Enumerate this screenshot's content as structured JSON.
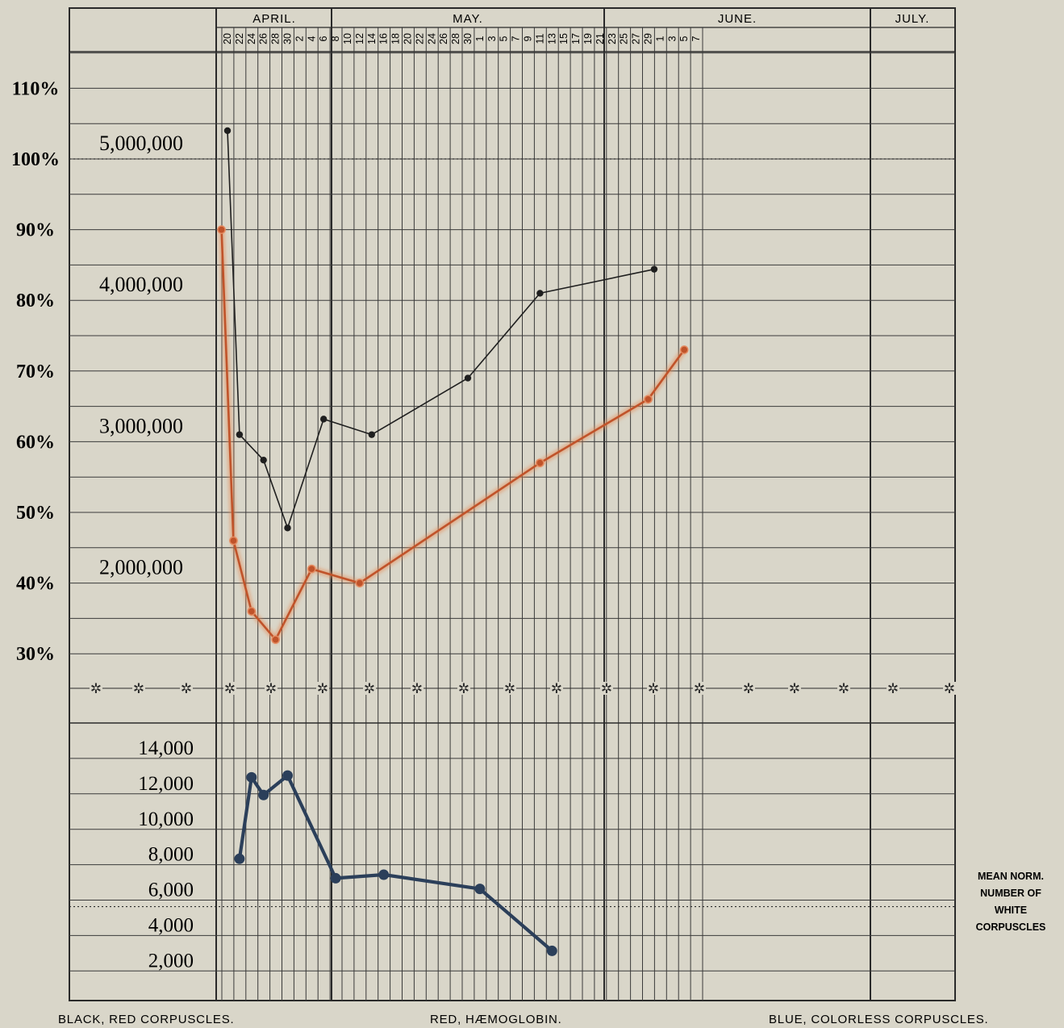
{
  "chart_data": {
    "type": "line",
    "months": [
      {
        "label": "APRIL."
      },
      {
        "label": "MAY."
      },
      {
        "label": "JUNE."
      },
      {
        "label": "JULY."
      }
    ],
    "day_labels": [
      "20",
      "22",
      "24",
      "26",
      "28",
      "30",
      "2",
      "4",
      "6",
      "8",
      "10",
      "12",
      "14",
      "16",
      "18",
      "20",
      "22",
      "24",
      "26",
      "28",
      "30",
      "1",
      "3",
      "5",
      "7",
      "9",
      "11",
      "13",
      "15",
      "17",
      "19",
      "21",
      "23",
      "25",
      "27",
      "29",
      "1",
      "3",
      "5",
      "7"
    ],
    "percent_ticks": [
      "110%",
      "100%",
      "90%",
      "80%",
      "70%",
      "60%",
      "50%",
      "40%",
      "30%"
    ],
    "red_count_ticks": [
      "5,000,000",
      "4,000,000",
      "3,000,000",
      "2,000,000"
    ],
    "white_count_ticks": [
      "14,000",
      "12,000",
      "10,000",
      "8,000",
      "6,000",
      "4,000",
      "2,000"
    ],
    "mean_norm_label": "MEAN NORM. NUMBER OF WHITE CORPUSCLES",
    "legend_notes": [
      "BLACK, RED CORPUSCLES.",
      "RED, HÆMOGLOBIN.",
      "BLUE, COLORLESS CORPUSCLES."
    ],
    "series": [
      {
        "legend": "BLACK, RED CORPUSCLES.",
        "color": "#1f1f1f",
        "units": "corpuscles per cmm",
        "points": [
          {
            "date": "Apr 20",
            "value": 5200000
          },
          {
            "date": "Apr 22",
            "value": 3050000
          },
          {
            "date": "Apr 26",
            "value": 2870000
          },
          {
            "date": "Apr 30",
            "value": 2390000
          },
          {
            "date": "May 6",
            "value": 3160000
          },
          {
            "date": "May 14",
            "value": 3050000
          },
          {
            "date": "May 30",
            "value": 3450000
          },
          {
            "date": "Jun 11",
            "value": 4050000
          },
          {
            "date": "Jun 30",
            "value": 4220000
          }
        ]
      },
      {
        "legend": "RED, HÆMOGLOBIN.",
        "color": "#c0532a",
        "units": "percent",
        "points": [
          {
            "date": "Apr 19",
            "value": 90
          },
          {
            "date": "Apr 21",
            "value": 46
          },
          {
            "date": "Apr 24",
            "value": 36
          },
          {
            "date": "Apr 28",
            "value": 32
          },
          {
            "date": "May 4",
            "value": 42
          },
          {
            "date": "May 12",
            "value": 40
          },
          {
            "date": "Jun 11",
            "value": 57
          },
          {
            "date": "Jun 29",
            "value": 66
          },
          {
            "date": "Jul 5",
            "value": 73
          }
        ]
      },
      {
        "legend": "BLUE, COLORLESS CORPUSCLES.",
        "color": "#2b3f5a",
        "units": "corpuscles per cmm",
        "points": [
          {
            "date": "Apr 22",
            "value": 7700
          },
          {
            "date": "Apr 24",
            "value": 12300
          },
          {
            "date": "Apr 26",
            "value": 11300
          },
          {
            "date": "Apr 30",
            "value": 12400
          },
          {
            "date": "May 8",
            "value": 6600
          },
          {
            "date": "May 16",
            "value": 6800
          },
          {
            "date": "Jun 1",
            "value": 6000
          },
          {
            "date": "Jun 13",
            "value": 2500
          }
        ]
      }
    ],
    "mean_norm_white_value": 5000,
    "grid": true
  }
}
